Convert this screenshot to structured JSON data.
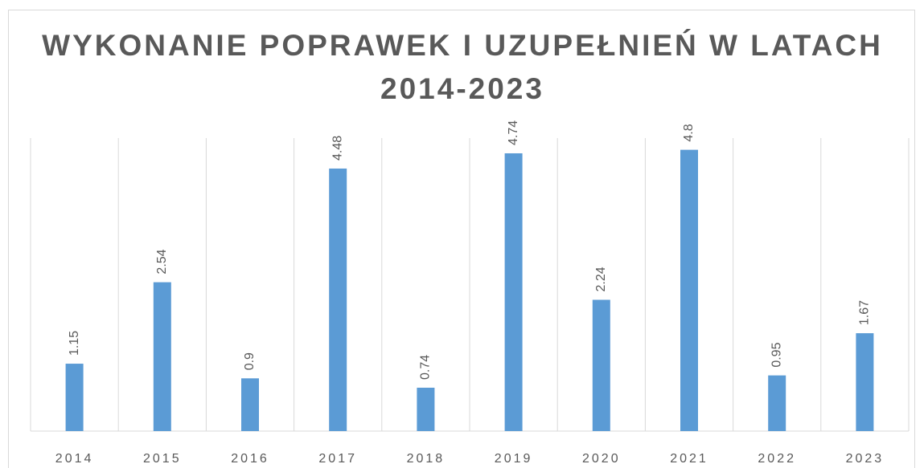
{
  "chart_data": {
    "type": "bar",
    "title": "WYKONANIE POPRAWEK I UZUPEŁNIEŃ W LATACH 2014-2023",
    "categories": [
      "2014",
      "2015",
      "2016",
      "2017",
      "2018",
      "2019",
      "2020",
      "2021",
      "2022",
      "2023"
    ],
    "values": [
      1.15,
      2.54,
      0.9,
      4.48,
      0.74,
      4.74,
      2.24,
      4.8,
      0.95,
      1.67
    ],
    "color": "#5b9bd5",
    "ylim": [
      0,
      5
    ]
  }
}
